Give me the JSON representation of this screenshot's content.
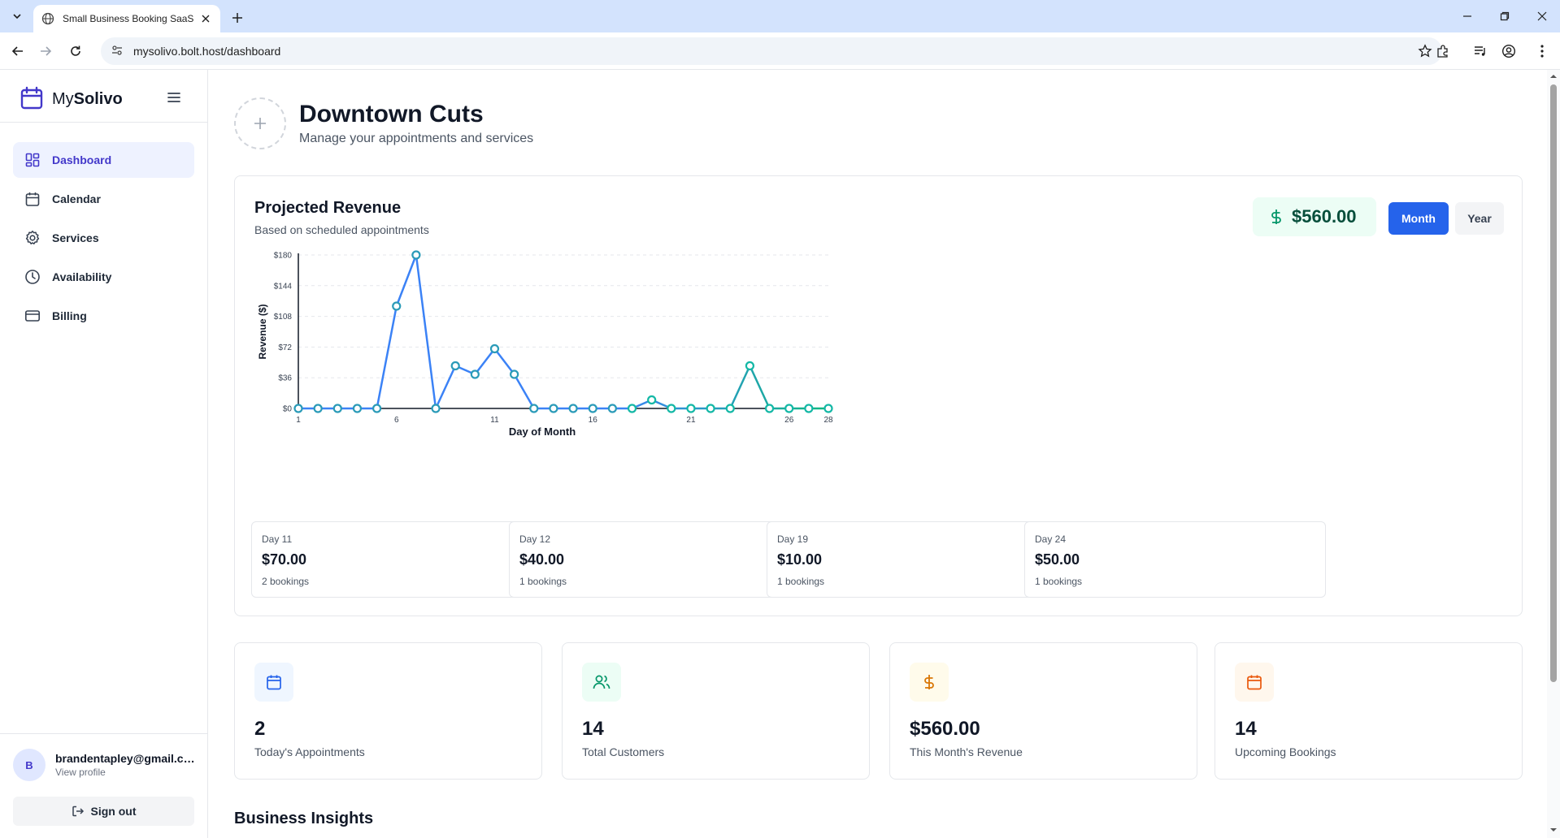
{
  "browser": {
    "tab_title": "Small Business Booking SaaS",
    "url": "mysolivo.bolt.host/dashboard"
  },
  "sidebar": {
    "brand_light": "My",
    "brand_bold": "Solivo",
    "items": [
      {
        "label": "Dashboard",
        "icon": "grid-icon",
        "active": true
      },
      {
        "label": "Calendar",
        "icon": "calendar-icon",
        "active": false
      },
      {
        "label": "Services",
        "icon": "gear-icon",
        "active": false
      },
      {
        "label": "Availability",
        "icon": "clock-icon",
        "active": false
      },
      {
        "label": "Billing",
        "icon": "credit-card-icon",
        "active": false
      }
    ],
    "user": {
      "initial": "B",
      "email": "brandentapley@gmail.com",
      "link": "View profile"
    },
    "signout_label": "Sign out"
  },
  "header": {
    "business_name": "Downtown Cuts",
    "subtitle": "Manage your appointments and services"
  },
  "revenue": {
    "title": "Projected Revenue",
    "subtitle": "Based on scheduled appointments",
    "total": "$560.00",
    "period_buttons": [
      "Month",
      "Year"
    ],
    "active_period": "Month",
    "day_cards": [
      {
        "day": "Day 11",
        "amount": "$70.00",
        "bookings": "2 bookings"
      },
      {
        "day": "Day 12",
        "amount": "$40.00",
        "bookings": "1 bookings"
      },
      {
        "day": "Day 19",
        "amount": "$10.00",
        "bookings": "1 bookings"
      },
      {
        "day": "Day 24",
        "amount": "$50.00",
        "bookings": "1 bookings"
      }
    ]
  },
  "chart_data": {
    "type": "line",
    "xlabel": "Day of Month",
    "ylabel": "Revenue ($)",
    "x": [
      1,
      2,
      3,
      4,
      5,
      6,
      7,
      8,
      9,
      10,
      11,
      12,
      13,
      14,
      15,
      16,
      17,
      18,
      19,
      20,
      21,
      22,
      23,
      24,
      25,
      26,
      27,
      28
    ],
    "values": [
      0,
      0,
      0,
      0,
      0,
      120,
      180,
      0,
      50,
      40,
      70,
      40,
      0,
      0,
      0,
      0,
      0,
      0,
      10,
      0,
      0,
      0,
      0,
      50,
      0,
      0,
      0,
      0
    ],
    "xticks": [
      1,
      6,
      11,
      16,
      21,
      26,
      28
    ],
    "yticks": [
      "$0",
      "$36",
      "$72",
      "$108",
      "$144",
      "$180"
    ],
    "ylim": [
      0,
      180
    ],
    "grid": true,
    "line_color_start": "#3b82f6",
    "line_color_end": "#10b981"
  },
  "stats": [
    {
      "value": "2",
      "label": "Today's Appointments",
      "icon": "calendar-icon",
      "color": "#2563eb",
      "bg": "#eff6ff"
    },
    {
      "value": "14",
      "label": "Total Customers",
      "icon": "users-icon",
      "color": "#059669",
      "bg": "#ecfdf5"
    },
    {
      "value": "$560.00",
      "label": "This Month's Revenue",
      "icon": "dollar-icon",
      "color": "#d97706",
      "bg": "#fffbeb"
    },
    {
      "value": "14",
      "label": "Upcoming Bookings",
      "icon": "calendar-icon",
      "color": "#ea580c",
      "bg": "#fff7ed"
    }
  ],
  "insights_title": "Business Insights"
}
